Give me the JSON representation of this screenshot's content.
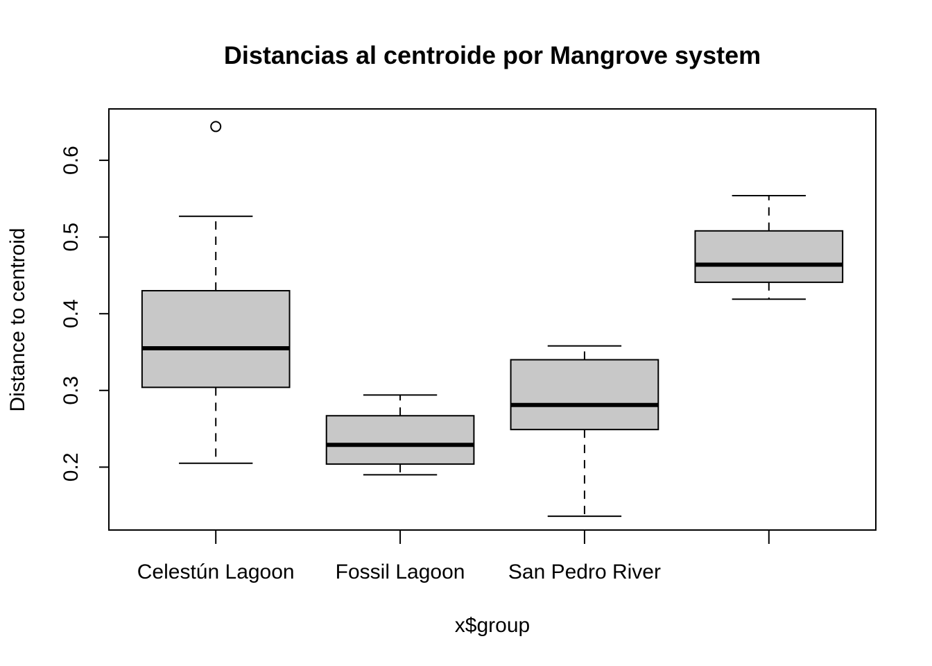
{
  "chart_data": {
    "type": "box",
    "title": "Distancias al centroide por Mangrove system",
    "xlabel": "x$group",
    "ylabel": "Distance to centroid",
    "categories": [
      "Celestún Lagoon",
      "Fossil Lagoon",
      "San Pedro River",
      ""
    ],
    "ylim": [
      0.118,
      0.667
    ],
    "yticks": [
      "0.2",
      "0.3",
      "0.4",
      "0.5",
      "0.6"
    ],
    "grid": false,
    "box_fill": "#c8c8c8",
    "boxes": [
      {
        "min": 0.205,
        "q1": 0.304,
        "median": 0.355,
        "q3": 0.43,
        "max": 0.527,
        "outliers": [
          0.644
        ]
      },
      {
        "min": 0.19,
        "q1": 0.204,
        "median": 0.229,
        "q3": 0.267,
        "max": 0.294,
        "outliers": []
      },
      {
        "min": 0.136,
        "q1": 0.249,
        "median": 0.281,
        "q3": 0.34,
        "max": 0.358,
        "outliers": []
      },
      {
        "min": 0.419,
        "q1": 0.441,
        "median": 0.464,
        "q3": 0.508,
        "max": 0.554,
        "outliers": []
      }
    ]
  }
}
